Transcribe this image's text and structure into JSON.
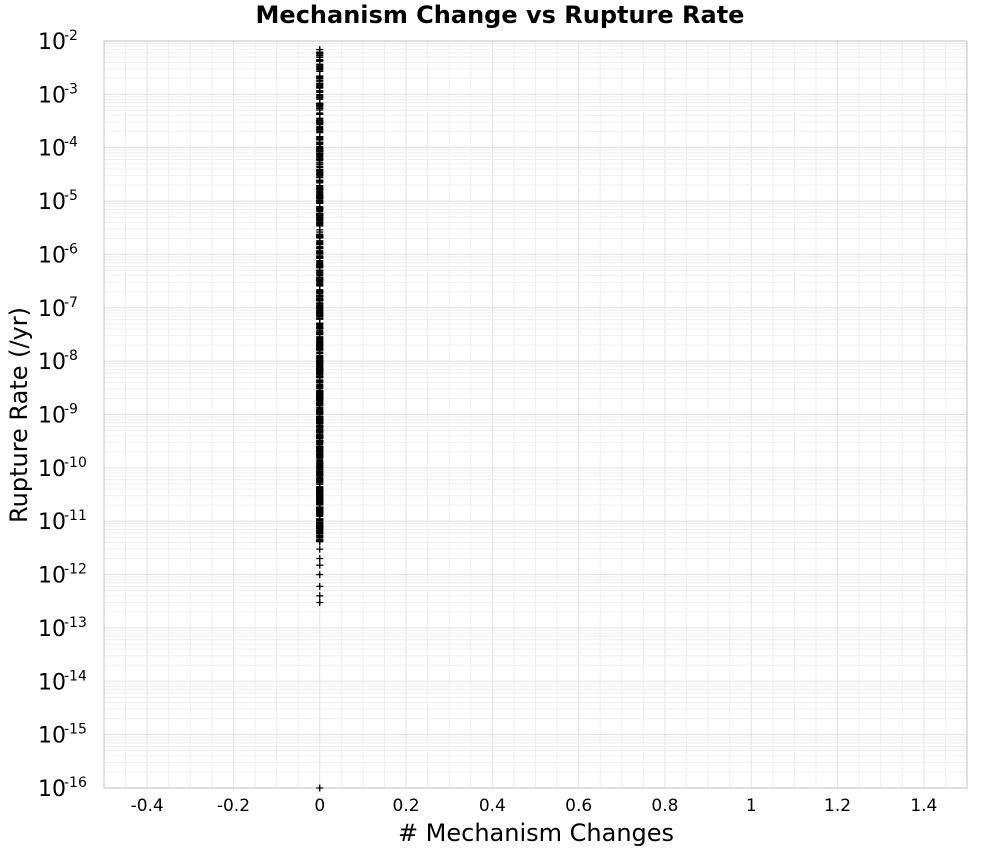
{
  "chart_data": {
    "type": "scatter",
    "title": "Mechanism Change vs Rupture Rate",
    "xlabel": "# Mechanism Changes",
    "ylabel": "Rupture Rate (/yr)",
    "xlim": [
      -0.5,
      1.5
    ],
    "ylim": [
      1e-16,
      0.01
    ],
    "yscale": "log",
    "grid": true,
    "legend": "none",
    "marker": "plus",
    "marker_color": "#000000",
    "x_ticks": [
      "-0.4",
      "-0.2",
      "0",
      "0.2",
      "0.4",
      "0.6",
      "0.8",
      "1",
      "1.2",
      "1.4"
    ],
    "y_ticks": [
      {
        "base": "10",
        "exp": "-2"
      },
      {
        "base": "10",
        "exp": "-3"
      },
      {
        "base": "10",
        "exp": "-4"
      },
      {
        "base": "10",
        "exp": "-5"
      },
      {
        "base": "10",
        "exp": "-6"
      },
      {
        "base": "10",
        "exp": "-7"
      },
      {
        "base": "10",
        "exp": "-8"
      },
      {
        "base": "10",
        "exp": "-9"
      },
      {
        "base": "10",
        "exp": "-10"
      },
      {
        "base": "10",
        "exp": "-11"
      },
      {
        "base": "10",
        "exp": "-12"
      },
      {
        "base": "10",
        "exp": "-13"
      },
      {
        "base": "10",
        "exp": "-14"
      },
      {
        "base": "10",
        "exp": "-15"
      },
      {
        "base": "10",
        "exp": "-16"
      }
    ],
    "series": [
      {
        "x": 0,
        "y_range_dense": [
          4e-12,
          0.007
        ],
        "y_outliers": [
          3e-13,
          4e-13,
          6e-13,
          1e-12,
          1.5e-12,
          2e-12,
          3e-12,
          1e-16
        ],
        "approx_point_count": 4500
      }
    ]
  }
}
